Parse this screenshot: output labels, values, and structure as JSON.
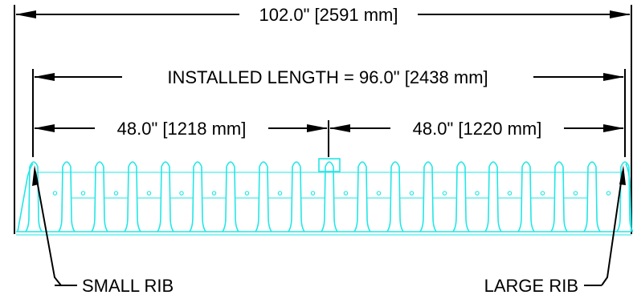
{
  "dimensions": {
    "overall": "102.0\" [2591 mm]",
    "installed": "INSTALLED LENGTH = 96.0\" [2438 mm]",
    "left_half": "48.0\" [1218 mm]",
    "right_half": "48.0\" [1220 mm]"
  },
  "callouts": {
    "small_rib": "SMALL RIB",
    "large_rib": "LARGE RIB"
  },
  "colors": {
    "dimension_lines": "#000000",
    "chamber_outline": "#23e6e6",
    "background": "#ffffff"
  }
}
